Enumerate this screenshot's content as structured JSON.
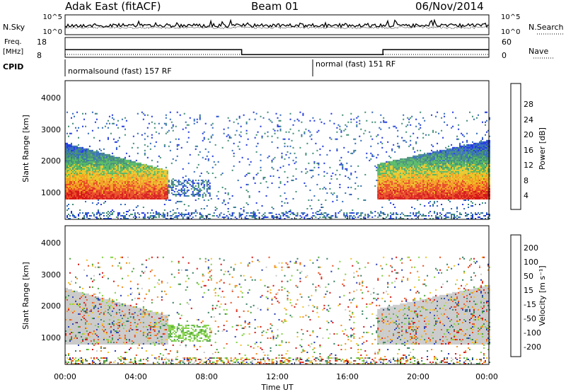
{
  "header": {
    "site": "Adak East (fitACF)",
    "beam": "Beam 01",
    "date": "06/Nov/2014"
  },
  "noise_panel": {
    "left_label": "N.Sky",
    "right_label": "N.Search",
    "left_ticks": [
      "10^5",
      "10^0"
    ],
    "right_ticks": [
      "10^5",
      "10^0"
    ]
  },
  "freq_panel": {
    "left_label_1": "Freq.",
    "left_label_2": "[MHz]",
    "right_label": "Nave",
    "left_ticks": [
      "18",
      "8"
    ],
    "right_ticks": [
      "60",
      "0"
    ],
    "cpid_label": "CPID",
    "freq_segments": [
      {
        "t_start": 0,
        "t_end": 10,
        "value": 13.3
      },
      {
        "t_start": 10,
        "t_end": 18,
        "value": 10.8
      },
      {
        "t_start": 18,
        "t_end": 24,
        "value": 13.3
      }
    ]
  },
  "cpid": [
    {
      "name": "normalsound (fast) 157 RF",
      "t_start": 0
    },
    {
      "name": "normal (fast) 151 RF",
      "t_start": 14
    }
  ],
  "chart_data": [
    {
      "type": "heatmap",
      "id": "power",
      "ylabel": "Slant Range [km]",
      "colorbar_label": "Power [dB]",
      "ylim": [
        200,
        4600
      ],
      "yticks": [
        "1000",
        "2000",
        "3000",
        "4000"
      ],
      "colorbar_ticks": [
        "4",
        "8",
        "12",
        "16",
        "20",
        "24",
        "28"
      ],
      "colors": [
        "#1b32e0",
        "#2a66b8",
        "#3a8a70",
        "#4bb55a",
        "#e8c51e",
        "#f39a1a",
        "#e8441c",
        "#d41010"
      ]
    },
    {
      "type": "heatmap",
      "id": "velocity",
      "ylabel": "Slant Range [km]",
      "colorbar_label": "Velocity [m s⁻¹]",
      "ylim": [
        200,
        4600
      ],
      "yticks": [
        "1000",
        "2000",
        "3000",
        "4000"
      ],
      "colorbar_ticks": [
        "200",
        "100",
        "50",
        "15",
        "-15",
        "-50",
        "-100",
        "-200"
      ],
      "colors": [
        "#2035b0",
        "#2e7a5a",
        "#49a23a",
        "#7ed03c",
        "#c8c8c8",
        "#f0c020",
        "#f08a18",
        "#e84a18",
        "#d41010"
      ]
    }
  ],
  "x_axis": {
    "label": "Time UT",
    "ticks": [
      "00:00",
      "04:00",
      "08:00",
      "12:00",
      "16:00",
      "20:00",
      "00:00"
    ]
  }
}
